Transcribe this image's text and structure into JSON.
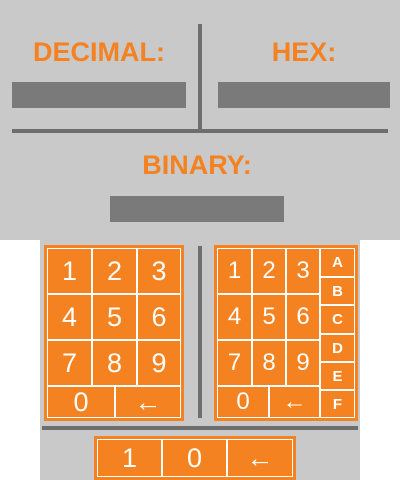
{
  "labels": {
    "decimal": "DECIMAL:",
    "hex": "HEX:",
    "binary": "BINARY:"
  },
  "displays": {
    "decimal": "",
    "hex": "",
    "binary": ""
  },
  "decimal_pad": {
    "keys": [
      "1",
      "2",
      "3",
      "4",
      "5",
      "6",
      "7",
      "8",
      "9",
      "0",
      "←"
    ]
  },
  "hex_pad": {
    "digit_keys": [
      "1",
      "2",
      "3",
      "4",
      "5",
      "6",
      "7",
      "8",
      "9",
      "0",
      "←"
    ],
    "letter_keys": [
      "A",
      "B",
      "C",
      "D",
      "E",
      "F"
    ]
  },
  "binary_pad": {
    "keys": [
      "1",
      "0",
      "←"
    ]
  },
  "colors": {
    "accent": "#f58220",
    "panel": "#c9c9c9",
    "display": "#7a7a7a",
    "divider": "#6e6e6e"
  }
}
